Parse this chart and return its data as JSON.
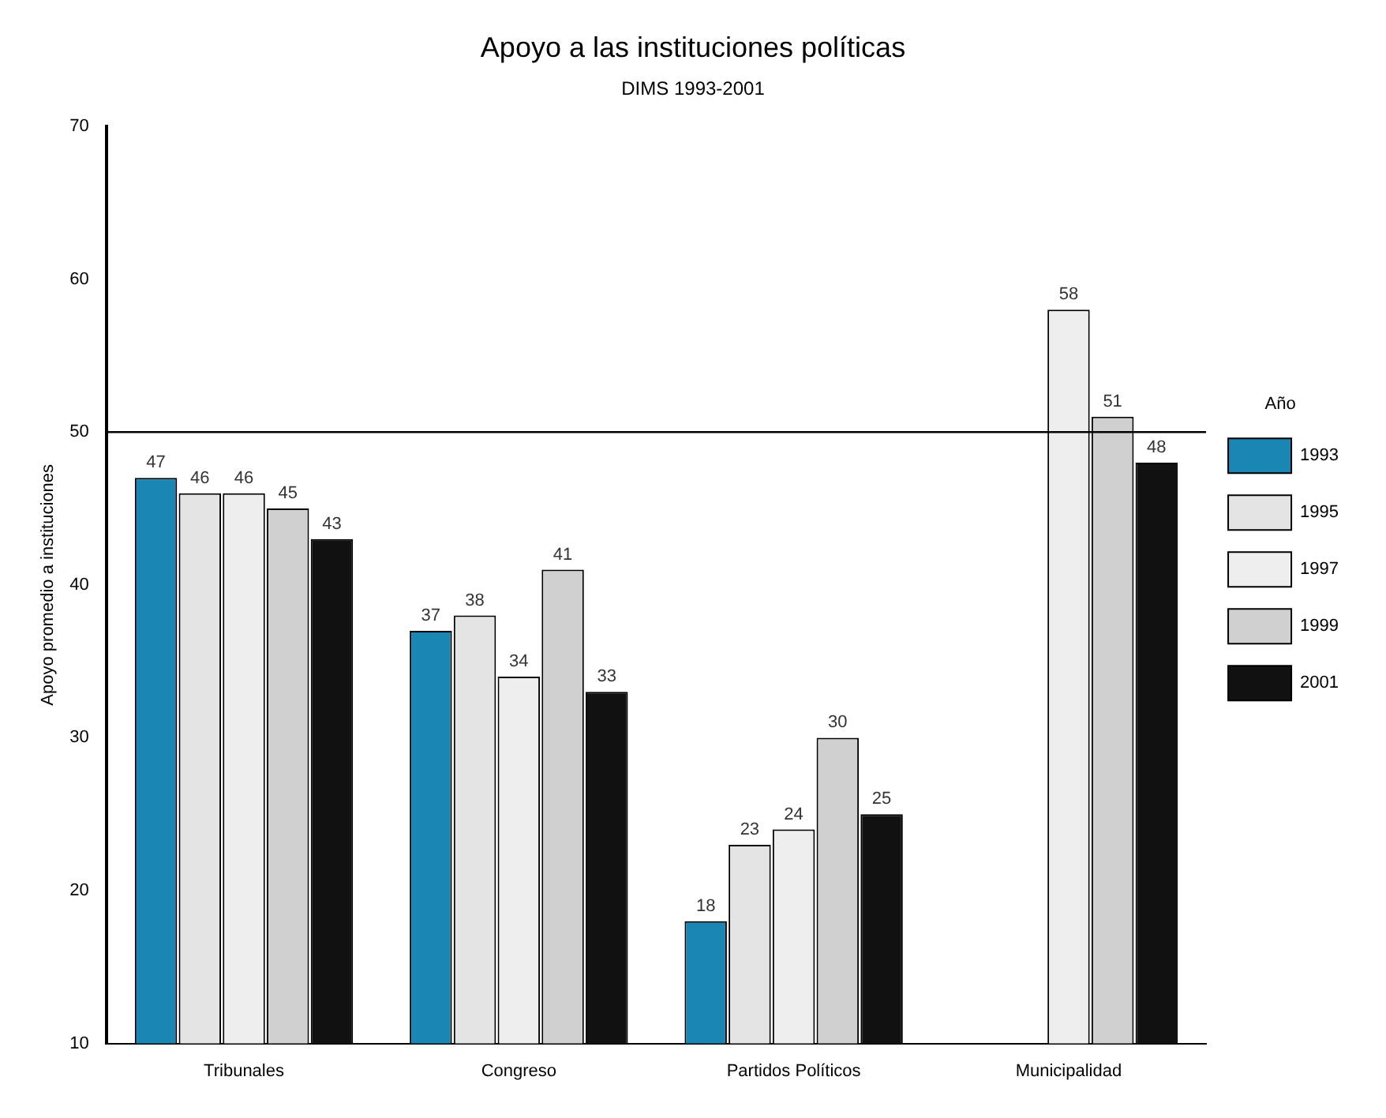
{
  "chart_data": {
    "type": "bar",
    "title": "Apoyo a las instituciones políticas",
    "subtitle": "DIMS 1993-2001",
    "ylabel": "Apoyo promedio a instituciones",
    "legend_title": "Año",
    "categories": [
      "Tribunales",
      "Congreso",
      "Partidos Políticos",
      "Municipalidad"
    ],
    "series": [
      {
        "name": "1993",
        "color": "#1a86b4",
        "values": [
          47,
          37,
          18,
          null
        ]
      },
      {
        "name": "1995",
        "color": "#e4e4e4",
        "values": [
          46,
          38,
          23,
          null
        ]
      },
      {
        "name": "1997",
        "color": "#eeeeee",
        "values": [
          46,
          34,
          24,
          58
        ]
      },
      {
        "name": "1999",
        "color": "#d0d0d0",
        "values": [
          45,
          41,
          30,
          51
        ]
      },
      {
        "name": "2001",
        "color": "#111111",
        "values": [
          43,
          33,
          25,
          48
        ]
      }
    ],
    "ylim": [
      10,
      70
    ],
    "yticks": [
      10,
      20,
      30,
      40,
      50,
      60,
      70
    ],
    "grid": false,
    "legend": "right",
    "data_labels": true,
    "ref_lines": [
      {
        "axis": "y",
        "value": 50,
        "color": "#000000"
      }
    ]
  }
}
